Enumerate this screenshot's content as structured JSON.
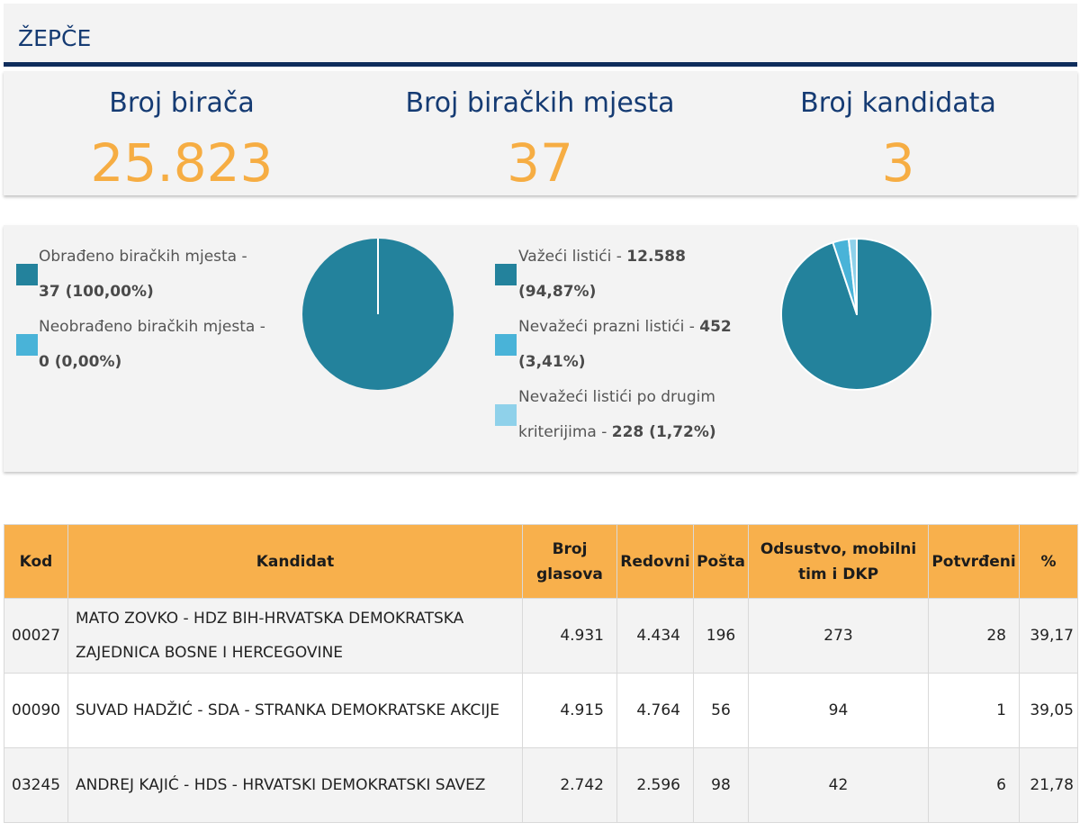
{
  "header": {
    "title": "ŽEPČE"
  },
  "stats": [
    {
      "label": "Broj birača",
      "value": "25.823"
    },
    {
      "label": "Broj biračkih mjesta",
      "value": "37"
    },
    {
      "label": "Broj kandidata",
      "value": "3"
    }
  ],
  "charts": {
    "stations": {
      "legend": [
        {
          "text": "Obrađeno biračkih mjesta - ",
          "value": "37 (100,00%)",
          "color": "#23829c"
        },
        {
          "text": "Neobrađeno biračkih mjesta - ",
          "value": "0 (0,00%)",
          "color": "#49b3d8"
        }
      ],
      "chart_data": {
        "type": "pie",
        "categories": [
          "Obrađeno biračkih mjesta",
          "Neobrađeno biračkih mjesta"
        ],
        "values": [
          100.0,
          0.0
        ],
        "colors": [
          "#23829c",
          "#49b3d8"
        ]
      }
    },
    "ballots": {
      "legend": [
        {
          "text": "Važeći listići - ",
          "value": "12.588 (94,87%)",
          "color": "#23829c"
        },
        {
          "text": "Nevažeći prazni listići - ",
          "value": "452 (3,41%)",
          "color": "#49b3d8"
        },
        {
          "text": "Nevažeći listići po drugim kriterijima - ",
          "value": "228 (1,72%)",
          "color": "#8fd1ea"
        }
      ],
      "chart_data": {
        "type": "pie",
        "categories": [
          "Važeći listići",
          "Nevažeći prazni listići",
          "Nevažeći listići po drugim kriterijima"
        ],
        "values": [
          94.87,
          3.41,
          1.72
        ],
        "colors": [
          "#23829c",
          "#49b3d8",
          "#8fd1ea"
        ]
      }
    }
  },
  "table": {
    "headers": [
      "Kod",
      "Kandidat",
      "Broj glasova",
      "Redovni",
      "Pošta",
      "Odsustvo, mobilni tim i DKP",
      "Potvrđeni",
      "%"
    ],
    "rows": [
      [
        "00027",
        "MATO ZOVKO - HDZ BIH-HRVATSKA DEMOKRATSKA ZAJEDNICA BOSNE I HERCEGOVINE",
        "4.931",
        "4.434",
        "196",
        "273",
        "28",
        "39,17"
      ],
      [
        "00090",
        "SUVAD HADŽIĆ - SDA - STRANKA DEMOKRATSKE AKCIJE",
        "4.915",
        "4.764",
        "56",
        "94",
        "1",
        "39,05"
      ],
      [
        "03245",
        "ANDREJ KAJIĆ - HDS - HRVATSKI DEMOKRATSKI SAVEZ",
        "2.742",
        "2.596",
        "98",
        "42",
        "6",
        "21,78"
      ]
    ]
  }
}
